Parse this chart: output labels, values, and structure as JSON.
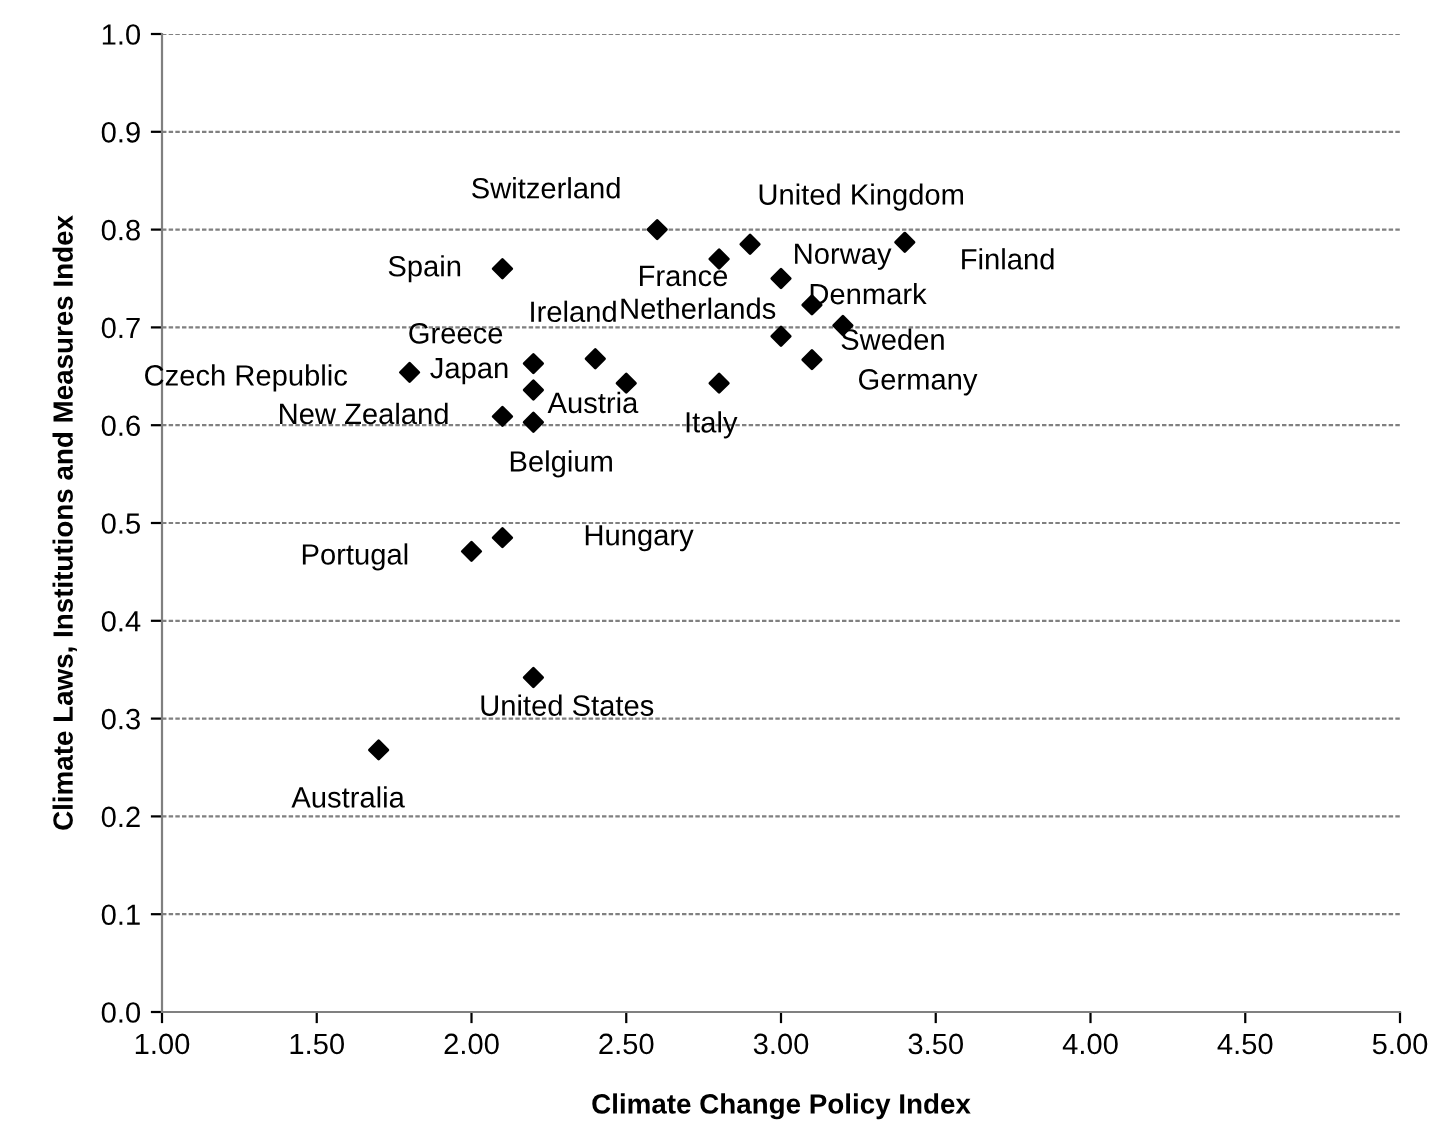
{
  "chart_data": {
    "type": "scatter",
    "xlabel": "Climate Change Policy Index",
    "ylabel": "Climate Laws, Institutions and Measures Index",
    "x": [
      2.6,
      2.9,
      2.8,
      3.0,
      3.4,
      2.1,
      3.1,
      3.2,
      3.0,
      3.1,
      2.4,
      2.2,
      1.8,
      2.2,
      2.5,
      2.8,
      2.1,
      2.2,
      2.1,
      2.0,
      2.2,
      1.7
    ],
    "series": [
      {
        "color": "#000000",
        "values": [
          0.8,
          0.785,
          0.77,
          0.75,
          0.787,
          0.76,
          0.723,
          0.702,
          0.691,
          0.667,
          0.668,
          0.663,
          0.654,
          0.636,
          0.643,
          0.643,
          0.609,
          0.603,
          0.485,
          0.471,
          0.342,
          0.268
        ]
      }
    ],
    "annotations": [
      {
        "text": "Switzerland",
        "x": 2.6,
        "y": 0.8
      },
      {
        "text": "United Kingdom",
        "x": 2.9,
        "y": 0.785
      },
      {
        "text": "France",
        "x": 2.8,
        "y": 0.77
      },
      {
        "text": "Norway",
        "x": 3.0,
        "y": 0.75
      },
      {
        "text": "Finland",
        "x": 3.4,
        "y": 0.787
      },
      {
        "text": "Spain",
        "x": 2.1,
        "y": 0.76
      },
      {
        "text": "Denmark",
        "x": 3.1,
        "y": 0.723
      },
      {
        "text": "Sweden",
        "x": 3.2,
        "y": 0.702
      },
      {
        "text": "Netherlands",
        "x": 3.0,
        "y": 0.691
      },
      {
        "text": "Germany",
        "x": 3.1,
        "y": 0.667
      },
      {
        "text": "Ireland",
        "x": 2.4,
        "y": 0.668
      },
      {
        "text": "Greece",
        "x": 2.2,
        "y": 0.663
      },
      {
        "text": "Czech Republic",
        "x": 1.8,
        "y": 0.654
      },
      {
        "text": "Japan",
        "x": 2.2,
        "y": 0.636
      },
      {
        "text": "Austria",
        "x": 2.5,
        "y": 0.643
      },
      {
        "text": "Italy",
        "x": 2.8,
        "y": 0.643
      },
      {
        "text": "New Zealand",
        "x": 2.1,
        "y": 0.609
      },
      {
        "text": "Belgium",
        "x": 2.2,
        "y": 0.603
      },
      {
        "text": "Hungary",
        "x": 2.1,
        "y": 0.485
      },
      {
        "text": "Portugal",
        "x": 2.0,
        "y": 0.471
      },
      {
        "text": "United States",
        "x": 2.2,
        "y": 0.342
      },
      {
        "text": "Australia",
        "x": 1.7,
        "y": 0.268
      }
    ],
    "xlim": [
      1,
      5
    ],
    "ylim": [
      0,
      1
    ],
    "xticks": [
      {
        "value": 1,
        "label": "1.00"
      },
      {
        "value": 1.5,
        "label": "1.50"
      },
      {
        "value": 2,
        "label": "2.00"
      },
      {
        "value": 2.5,
        "label": "2.50"
      },
      {
        "value": 3,
        "label": "3.00"
      },
      {
        "value": 3.5,
        "label": "3.50"
      },
      {
        "value": 4,
        "label": "4.00"
      },
      {
        "value": 4.5,
        "label": "4.50"
      },
      {
        "value": 5,
        "label": "5.00"
      }
    ],
    "yticks": [
      {
        "value": 0,
        "label": "0.0"
      },
      {
        "value": 0.1,
        "label": "0.1"
      },
      {
        "value": 0.2,
        "label": "0.2"
      },
      {
        "value": 0.3,
        "label": "0.3"
      },
      {
        "value": 0.4,
        "label": "0.4"
      },
      {
        "value": 0.5,
        "label": "0.5"
      },
      {
        "value": 0.6,
        "label": "0.6"
      },
      {
        "value": 0.7,
        "label": "0.7"
      },
      {
        "value": 0.8,
        "label": "0.8"
      },
      {
        "value": 0.9,
        "label": "0.9"
      },
      {
        "value": 1,
        "label": "1.0"
      }
    ],
    "grid": "y",
    "marker": "diamond",
    "legend": false
  }
}
